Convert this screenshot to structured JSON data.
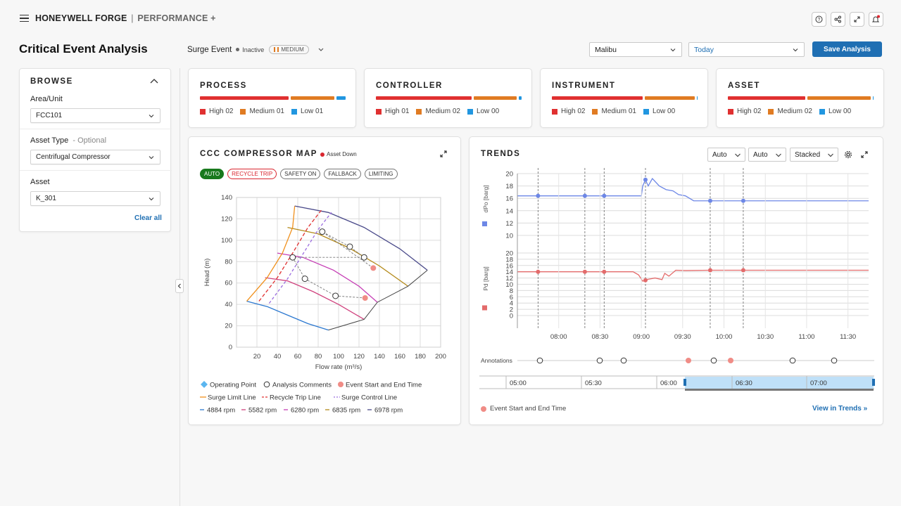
{
  "header": {
    "brand": "HONEYWELL FORGE",
    "separator": "|",
    "product": "PERFORMANCE +",
    "icons": [
      "help-icon",
      "share-icon",
      "fullscreen-icon",
      "bell-icon"
    ]
  },
  "title": "Critical Event Analysis",
  "event": {
    "name": "Surge Event",
    "status": "Inactive",
    "severity": "MEDIUM"
  },
  "site_select": {
    "value": "Malibu"
  },
  "date_select": {
    "value": "Today"
  },
  "save_label": "Save Analysis",
  "browse": {
    "heading": "BROWSE",
    "area_label": "Area/Unit",
    "area_value": "FCC101",
    "asset_type_label": "Asset Type",
    "asset_type_optional": "- Optional",
    "asset_type_value": "Centrifugal Compressor",
    "asset_label": "Asset",
    "asset_value": "K_301",
    "clear_label": "Clear all"
  },
  "kpis": [
    {
      "title": "PROCESS",
      "high": "High 02",
      "medium": "Medium 01",
      "low": "Low 01",
      "bar": {
        "high": 2,
        "medium": 1,
        "low": 0.2
      }
    },
    {
      "title": "CONTROLLER",
      "high": "High 01",
      "medium": "Medium 02",
      "low": "Low 00",
      "bar": {
        "high": 1,
        "medium": 0.45,
        "low": 0.03
      }
    },
    {
      "title": "INSTRUMENT",
      "high": "High 02",
      "medium": "Medium 01",
      "low": "Low 00",
      "bar": {
        "high": 1,
        "medium": 0.55,
        "low": 0.01
      }
    },
    {
      "title": "ASSET",
      "high": "High 02",
      "medium": "Medium 02",
      "low": "Low 00",
      "bar": {
        "high": 1,
        "medium": 0.82,
        "low": 0.01
      }
    }
  ],
  "colors": {
    "high": "#e03030",
    "medium": "#e07b22",
    "low": "#2196e0",
    "accent": "#1f6fb3"
  },
  "compressor_map": {
    "title": "CCC COMPRESSOR MAP",
    "badge": "Asset Down",
    "chips": [
      "AUTO",
      "RECYCLE TRIP",
      "SAFETY ON",
      "FALLBACK",
      "LIMITING"
    ],
    "legend1": [
      "Operating Point",
      "Analysis Comments",
      "Event Start and End Time"
    ],
    "legend2": [
      "Surge Limit Line",
      "Recycle Trip Line",
      "Surge Control Line"
    ],
    "legend3": [
      "4884 rpm",
      "5582 rpm",
      "6280 rpm",
      "6835 rpm",
      "6978 rpm"
    ]
  },
  "chart_data": [
    {
      "type": "line",
      "title": "CCC COMPRESSOR MAP",
      "xlabel": "Flow rate (m³/s)",
      "ylabel": "Head (m)",
      "xlim": [
        0,
        200
      ],
      "ylim": [
        0,
        140
      ],
      "xticks": [
        20,
        40,
        60,
        80,
        100,
        120,
        140,
        160,
        180,
        200
      ],
      "yticks": [
        0,
        20,
        40,
        60,
        80,
        100,
        120,
        140
      ],
      "series": [
        {
          "name": "4884 rpm",
          "color": "#2b78d0",
          "x": [
            10,
            30,
            50,
            70,
            90
          ],
          "y": [
            43,
            38,
            30,
            22,
            16
          ]
        },
        {
          "name": "5582 rpm",
          "color": "#d0427e",
          "x": [
            28,
            50,
            75,
            100,
            125
          ],
          "y": [
            65,
            62,
            52,
            40,
            26
          ]
        },
        {
          "name": "6280 rpm",
          "color": "#c63eb5",
          "x": [
            40,
            65,
            95,
            120,
            138
          ],
          "y": [
            88,
            84,
            72,
            57,
            42
          ]
        },
        {
          "name": "6835 rpm",
          "color": "#b48a1a",
          "x": [
            50,
            80,
            110,
            140,
            168
          ],
          "y": [
            112,
            106,
            93,
            76,
            57
          ]
        },
        {
          "name": "6978 rpm",
          "color": "#4a4a8a",
          "x": [
            57,
            90,
            125,
            160,
            187
          ],
          "y": [
            132,
            126,
            112,
            92,
            72
          ]
        },
        {
          "name": "Surge Limit Line",
          "color": "#f0901c",
          "x": [
            10,
            30,
            45,
            55,
            57
          ],
          "y": [
            43,
            65,
            88,
            112,
            132
          ]
        },
        {
          "name": "Recycle Trip Line",
          "color": "#e03030",
          "x": [
            22,
            40,
            55,
            70,
            83
          ],
          "y": [
            43,
            65,
            88,
            112,
            128
          ]
        },
        {
          "name": "Surge Control Line",
          "color": "#9b6de0",
          "x": [
            32,
            50,
            65,
            80,
            93
          ],
          "y": [
            41,
            64,
            87,
            110,
            126
          ]
        }
      ],
      "operating_points": [
        {
          "x": 84,
          "y": 108
        },
        {
          "x": 111,
          "y": 94
        },
        {
          "x": 125,
          "y": 84
        },
        {
          "x": 55,
          "y": 84
        },
        {
          "x": 67,
          "y": 64
        },
        {
          "x": 97,
          "y": 48
        }
      ],
      "event_points": [
        {
          "x": 134,
          "y": 74
        },
        {
          "x": 126,
          "y": 46
        }
      ]
    },
    {
      "type": "line",
      "title": "TRENDS",
      "stacked": true,
      "xticks": [
        "08:00",
        "08:30",
        "09:00",
        "09:30",
        "10:00",
        "10:30",
        "11:00",
        "11:30"
      ],
      "x_range_min": [
        450,
        705
      ],
      "series": [
        {
          "name": "dPo [barg]",
          "color": "#6d87e6",
          "ylim": [
            0,
            20
          ],
          "yticks": [
            10,
            12,
            14,
            16,
            18,
            20
          ],
          "x": [
            450,
            520,
            540,
            541,
            543,
            545,
            548,
            553,
            558,
            563,
            567,
            572,
            578,
            585,
            600,
            705
          ],
          "y": [
            16.4,
            16.4,
            16.4,
            18,
            19,
            18,
            19.2,
            18,
            17.4,
            17.2,
            16.6,
            16.4,
            15.6,
            15.6,
            15.6,
            15.6
          ]
        },
        {
          "name": "Pd [barg]",
          "color": "#e36b6b",
          "ylim": [
            0,
            20
          ],
          "yticks": [
            0,
            2,
            4,
            6,
            8,
            10,
            12,
            14,
            16,
            18,
            20
          ],
          "x": [
            450,
            520,
            534,
            538,
            541,
            545,
            550,
            555,
            557,
            560,
            565,
            572,
            590,
            705
          ],
          "y": [
            14,
            14,
            14,
            13,
            11,
            11.6,
            12,
            11.5,
            13.5,
            12.6,
            14.5,
            14.4,
            14.5,
            14.5
          ]
        }
      ],
      "event_markers_min": [
        465,
        499,
        513,
        543,
        590,
        614
      ],
      "annotations_label": "Annotations",
      "range_labels": [
        "05:00",
        "05:30",
        "06:00",
        "06:30",
        "07:00"
      ]
    }
  ],
  "trends": {
    "title": "TRENDS",
    "dd1": "Auto",
    "dd2": "Auto",
    "dd3": "Stacked",
    "event_legend": "Event Start and End Time",
    "view_label": "View in Trends"
  }
}
